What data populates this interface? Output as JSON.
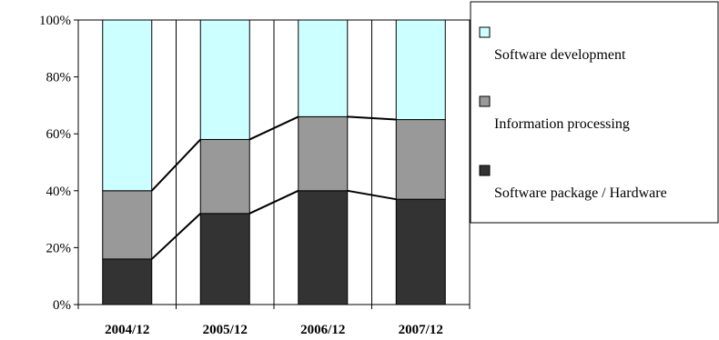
{
  "chart_data": {
    "type": "bar",
    "stacked": true,
    "percent": true,
    "categories": [
      "2004/12",
      "2005/12",
      "2006/12",
      "2007/12"
    ],
    "series": [
      {
        "name": "Software package / Hardware",
        "values": [
          16,
          32,
          40,
          37
        ],
        "color": "#333333"
      },
      {
        "name": "Information processing",
        "values": [
          24,
          26,
          26,
          28
        ],
        "color": "#999999"
      },
      {
        "name": "Software development",
        "values": [
          60,
          42,
          34,
          35
        ],
        "color": "#ccffff"
      }
    ],
    "legend_order": [
      "Software development",
      "Information processing",
      "Software package / Hardware"
    ],
    "series_lines": true,
    "ylim": [
      0,
      100
    ],
    "yticks": [
      "0%",
      "20%",
      "40%",
      "60%",
      "80%",
      "100%"
    ],
    "grid": "vertical",
    "legend_position": "right",
    "title": "",
    "xlabel": "",
    "ylabel": ""
  }
}
